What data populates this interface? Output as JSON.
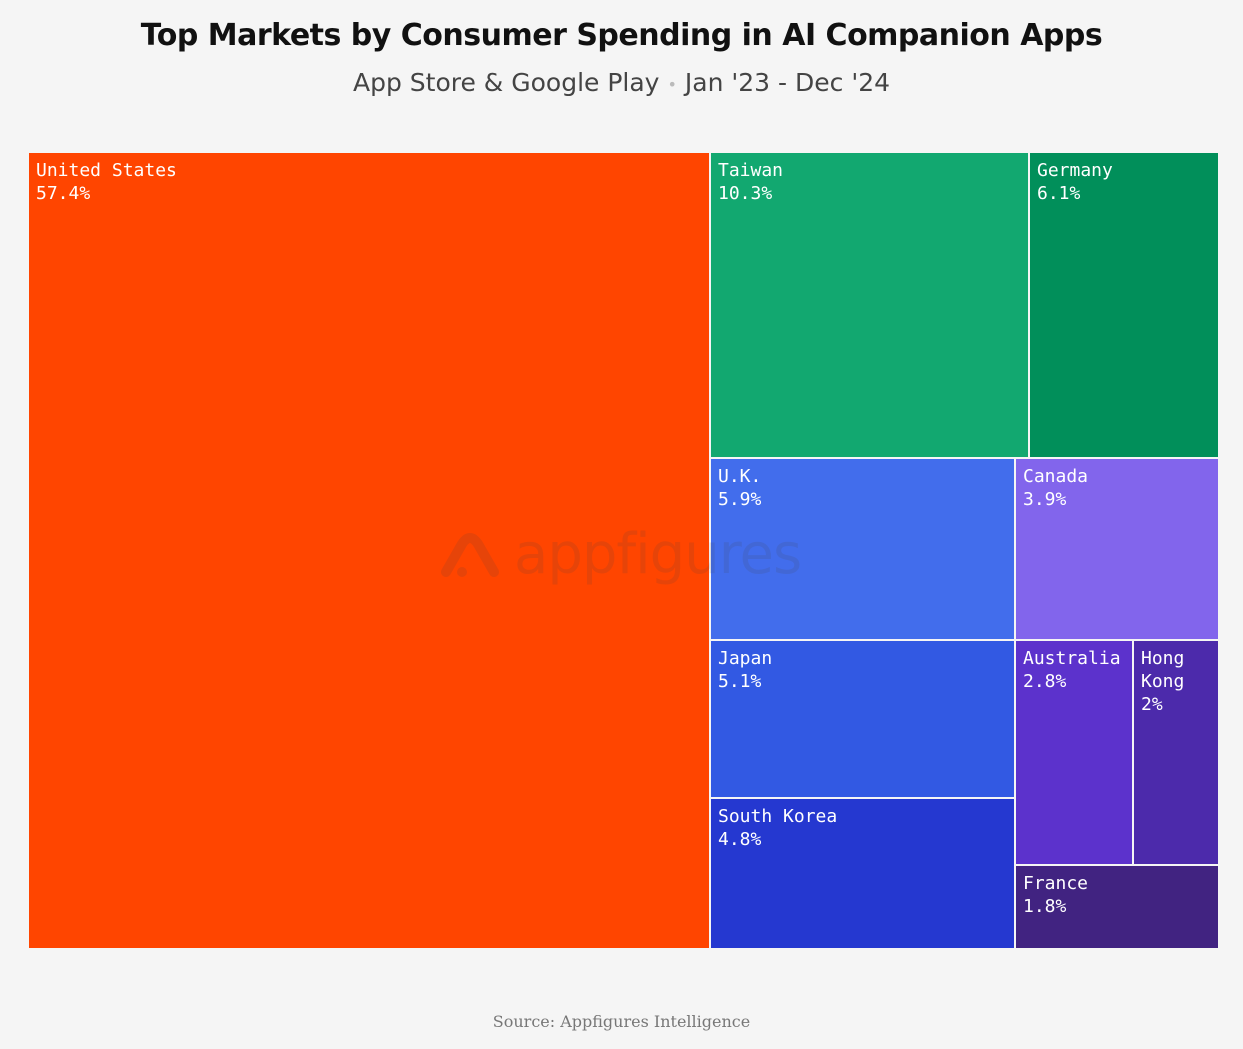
{
  "header": {
    "title": "Top Markets by Consumer Spending in AI Companion Apps",
    "subtitle_left": "App Store & Google Play",
    "subtitle_separator": "•",
    "subtitle_right": "Jan '23 - Dec '24"
  },
  "watermark": {
    "text": "appfigures",
    "icon": "appfigures-logo-icon"
  },
  "footer": {
    "source": "Source: Appfigures Intelligence"
  },
  "chart_data": {
    "type": "treemap",
    "title": "Top Markets by Consumer Spending in AI Companion Apps",
    "subtitle": "App Store & Google Play • Jan '23 - Dec '24",
    "unit": "%",
    "items": [
      {
        "name": "United States",
        "label": "57.4%",
        "value": 57.4,
        "color": "#ff4500"
      },
      {
        "name": "Taiwan",
        "label": "10.3%",
        "value": 10.3,
        "color": "#12a870"
      },
      {
        "name": "Germany",
        "label": "6.1%",
        "value": 6.1,
        "color": "#018f5a"
      },
      {
        "name": "U.K.",
        "label": "5.9%",
        "value": 5.9,
        "color": "#426dec"
      },
      {
        "name": "Canada",
        "label": "3.9%",
        "value": 3.9,
        "color": "#8265ec"
      },
      {
        "name": "Japan",
        "label": "5.1%",
        "value": 5.1,
        "color": "#3259e3"
      },
      {
        "name": "South Korea",
        "label": "4.8%",
        "value": 4.8,
        "color": "#2538d0"
      },
      {
        "name": "Australia",
        "label": "2.8%",
        "value": 2.8,
        "color": "#5c32cc"
      },
      {
        "name": "Hong Kong",
        "label": "2%",
        "value": 2.0,
        "color": "#4c2aab"
      },
      {
        "name": "France",
        "label": "1.8%",
        "value": 1.8,
        "color": "#412381"
      }
    ]
  }
}
